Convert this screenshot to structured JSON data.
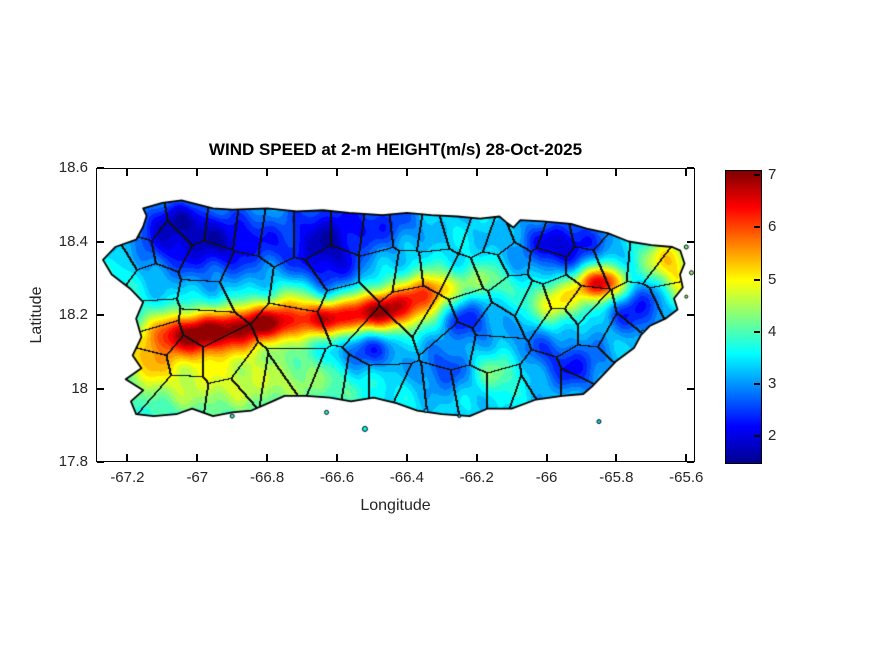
{
  "figure": {
    "background": "#ffffff",
    "axis_color": "#000000",
    "tick_label_color": "#262626",
    "title_color": "#000000"
  },
  "chart_data": {
    "type": "heatmap",
    "title": "WIND SPEED at 2-m HEIGHT(m/s) 28-Oct-2025",
    "xlabel": "Longitude",
    "ylabel": "Latitude",
    "units": "m/s",
    "grid": false,
    "xlim": [
      -67.29,
      -65.575
    ],
    "ylim": [
      17.8,
      18.6
    ],
    "x_tick_values": [
      -67.2,
      -67.0,
      -66.8,
      -66.6,
      -66.4,
      -66.2,
      -66.0,
      -65.8,
      -65.6
    ],
    "x_tick_labels": [
      "-67.2",
      "-67",
      "-66.8",
      "-66.6",
      "-66.4",
      "-66.2",
      "-66",
      "-65.8",
      "-65.6"
    ],
    "y_tick_values": [
      18.6,
      18.4,
      18.2,
      18.0,
      17.8
    ],
    "y_tick_labels": [
      "18.6",
      "18.4",
      "18.2",
      "18",
      "17.8"
    ],
    "colorbar": {
      "min": 1.5,
      "max": 7.1,
      "tick_values": [
        2,
        3,
        4,
        5,
        6,
        7
      ],
      "tick_labels": [
        "2",
        "3",
        "4",
        "5",
        "6",
        "7"
      ],
      "colormap": "jet",
      "position": "right"
    },
    "jet_anchors": [
      {
        "t": 0.0,
        "rgb": [
          0,
          0,
          143
        ]
      },
      {
        "t": 0.125,
        "rgb": [
          0,
          0,
          255
        ]
      },
      {
        "t": 0.375,
        "rgb": [
          0,
          255,
          255
        ]
      },
      {
        "t": 0.625,
        "rgb": [
          255,
          255,
          0
        ]
      },
      {
        "t": 0.875,
        "rgb": [
          255,
          0,
          0
        ]
      },
      {
        "t": 1.0,
        "rgb": [
          128,
          0,
          0
        ]
      }
    ],
    "contour_step": 0.2,
    "base_value": 3.4,
    "noise_amp": 0.18,
    "value_range": [
      1.6,
      7.05
    ],
    "wind_features": [
      {
        "name": "nw-interior-low",
        "kind": "low",
        "lon": -66.97,
        "lat": 18.4,
        "sx": 0.16,
        "sy": 0.065,
        "amp": -1.6
      },
      {
        "name": "nw-corner-low",
        "kind": "low",
        "lon": -67.07,
        "lat": 18.465,
        "sx": 0.055,
        "sy": 0.035,
        "amp": -0.8
      },
      {
        "name": "arecibo-low",
        "kind": "low",
        "lon": -66.625,
        "lat": 18.38,
        "sx": 0.075,
        "sy": 0.1,
        "amp": -1.5
      },
      {
        "name": "manati-coast-low",
        "kind": "low",
        "lon": -66.46,
        "lat": 18.45,
        "sx": 0.07,
        "sy": 0.045,
        "amp": -0.9
      },
      {
        "name": "ne-coast-low",
        "kind": "low",
        "lon": -65.955,
        "lat": 18.39,
        "sx": 0.085,
        "sy": 0.05,
        "amp": -1.5
      },
      {
        "name": "villalba-low",
        "kind": "low",
        "lon": -66.52,
        "lat": 18.11,
        "sx": 0.065,
        "sy": 0.05,
        "amp": -1.3
      },
      {
        "name": "comerio-low",
        "kind": "low",
        "lon": -66.23,
        "lat": 18.19,
        "sx": 0.055,
        "sy": 0.045,
        "amp": -1.1
      },
      {
        "name": "coamo-low",
        "kind": "low",
        "lon": -66.29,
        "lat": 18.05,
        "sx": 0.06,
        "sy": 0.045,
        "amp": -0.9
      },
      {
        "name": "yabucoa-low",
        "kind": "low",
        "lon": -65.925,
        "lat": 18.06,
        "sx": 0.07,
        "sy": 0.05,
        "amp": -1.1
      },
      {
        "name": "naguabo-low",
        "kind": "low",
        "lon": -65.745,
        "lat": 18.22,
        "sx": 0.065,
        "sy": 0.05,
        "amp": -1.2
      },
      {
        "name": "san-lorenzo-low",
        "kind": "low",
        "lon": -66.05,
        "lat": 18.12,
        "sx": 0.05,
        "sy": 0.04,
        "amp": -0.6
      },
      {
        "name": "maricao-ridge-high",
        "kind": "high",
        "lon": -67.0,
        "lat": 18.15,
        "sx": 0.105,
        "sy": 0.042,
        "amp": 3.5
      },
      {
        "name": "adjuntas-ridge-high",
        "kind": "high",
        "lon": -66.81,
        "lat": 18.18,
        "sx": 0.075,
        "sy": 0.038,
        "amp": 2.9
      },
      {
        "name": "jayuya-ridge-high",
        "kind": "high",
        "lon": -66.615,
        "lat": 18.19,
        "sx": 0.08,
        "sy": 0.038,
        "amp": 3.1
      },
      {
        "name": "orocovis-ridge-high",
        "kind": "high",
        "lon": -66.455,
        "lat": 18.215,
        "sx": 0.075,
        "sy": 0.042,
        "amp": 3.3
      },
      {
        "name": "barranquitas-high",
        "kind": "high",
        "lon": -66.33,
        "lat": 18.265,
        "sx": 0.055,
        "sy": 0.038,
        "amp": 2.3
      },
      {
        "name": "naranjito-high",
        "kind": "high",
        "lon": -66.18,
        "lat": 18.29,
        "sx": 0.05,
        "sy": 0.034,
        "amp": 1.1
      },
      {
        "name": "gurabo-tail-high",
        "kind": "high",
        "lon": -65.975,
        "lat": 18.235,
        "sx": 0.055,
        "sy": 0.038,
        "amp": 1.7
      },
      {
        "name": "el-yunque-high",
        "kind": "high",
        "lon": -65.845,
        "lat": 18.285,
        "sx": 0.05,
        "sy": 0.034,
        "amp": 3.5
      },
      {
        "name": "fajardo-tip-high",
        "kind": "high",
        "lon": -65.66,
        "lat": 18.355,
        "sx": 0.05,
        "sy": 0.045,
        "amp": 1.7
      },
      {
        "name": "sw-coastal-high",
        "kind": "high",
        "lon": -66.95,
        "lat": 18.02,
        "sx": 0.2,
        "sy": 0.075,
        "amp": 1.35
      },
      {
        "name": "cabo-rojo-high",
        "kind": "high",
        "lon": -67.14,
        "lat": 18.075,
        "sx": 0.055,
        "sy": 0.045,
        "amp": 1.1
      },
      {
        "name": "ponce-coast-high",
        "kind": "high",
        "lon": -66.63,
        "lat": 18.02,
        "sx": 0.13,
        "sy": 0.05,
        "amp": 0.5
      },
      {
        "name": "cayey-south-high",
        "kind": "high",
        "lon": -66.14,
        "lat": 18.045,
        "sx": 0.055,
        "sy": 0.04,
        "amp": 0.9
      },
      {
        "name": "utuado-high",
        "kind": "high",
        "lon": -66.72,
        "lat": 18.25,
        "sx": 0.05,
        "sy": 0.04,
        "amp": 0.9
      },
      {
        "name": "ceiba-coast-high",
        "kind": "high",
        "lon": -65.615,
        "lat": 18.28,
        "sx": 0.035,
        "sy": 0.05,
        "amp": 1.2
      },
      {
        "name": "rincon-high",
        "kind": "high",
        "lon": -67.22,
        "lat": 18.32,
        "sx": 0.05,
        "sy": 0.06,
        "amp": 0.5
      }
    ],
    "coastline": [
      [
        -67.155,
        18.49
      ],
      [
        -67.1,
        18.505
      ],
      [
        -67.045,
        18.512
      ],
      [
        -66.955,
        18.49
      ],
      [
        -66.9,
        18.487
      ],
      [
        -66.8,
        18.49
      ],
      [
        -66.715,
        18.482
      ],
      [
        -66.64,
        18.485
      ],
      [
        -66.565,
        18.478
      ],
      [
        -66.47,
        18.472
      ],
      [
        -66.4,
        18.478
      ],
      [
        -66.33,
        18.472
      ],
      [
        -66.255,
        18.468
      ],
      [
        -66.19,
        18.462
      ],
      [
        -66.135,
        18.468
      ],
      [
        -66.115,
        18.452
      ],
      [
        -66.095,
        18.438
      ],
      [
        -66.075,
        18.458
      ],
      [
        -66.01,
        18.455
      ],
      [
        -65.93,
        18.448
      ],
      [
        -65.885,
        18.435
      ],
      [
        -65.825,
        18.423
      ],
      [
        -65.765,
        18.4
      ],
      [
        -65.7,
        18.39
      ],
      [
        -65.64,
        18.385
      ],
      [
        -65.617,
        18.375
      ],
      [
        -65.605,
        18.34
      ],
      [
        -65.618,
        18.31
      ],
      [
        -65.61,
        18.275
      ],
      [
        -65.635,
        18.245
      ],
      [
        -65.625,
        18.215
      ],
      [
        -65.66,
        18.19
      ],
      [
        -65.705,
        18.17
      ],
      [
        -65.73,
        18.145
      ],
      [
        -65.75,
        18.11
      ],
      [
        -65.8,
        18.075
      ],
      [
        -65.825,
        18.05
      ],
      [
        -65.87,
        18.005
      ],
      [
        -65.895,
        17.985
      ],
      [
        -65.955,
        17.98
      ],
      [
        -66.03,
        17.97
      ],
      [
        -66.1,
        17.945
      ],
      [
        -66.17,
        17.945
      ],
      [
        -66.22,
        17.925
      ],
      [
        -66.3,
        17.93
      ],
      [
        -66.37,
        17.94
      ],
      [
        -66.43,
        17.96
      ],
      [
        -66.495,
        17.975
      ],
      [
        -66.56,
        17.965
      ],
      [
        -66.62,
        17.975
      ],
      [
        -66.69,
        17.98
      ],
      [
        -66.75,
        17.98
      ],
      [
        -66.785,
        17.965
      ],
      [
        -66.845,
        17.94
      ],
      [
        -66.9,
        17.935
      ],
      [
        -66.955,
        17.925
      ],
      [
        -67.015,
        17.945
      ],
      [
        -67.06,
        17.93
      ],
      [
        -67.125,
        17.925
      ],
      [
        -67.175,
        17.93
      ],
      [
        -67.19,
        17.965
      ],
      [
        -67.155,
        17.995
      ],
      [
        -67.205,
        18.025
      ],
      [
        -67.16,
        18.055
      ],
      [
        -67.185,
        18.09
      ],
      [
        -67.16,
        18.14
      ],
      [
        -67.175,
        18.19
      ],
      [
        -67.155,
        18.235
      ],
      [
        -67.19,
        18.27
      ],
      [
        -67.245,
        18.31
      ],
      [
        -67.27,
        18.35
      ],
      [
        -67.235,
        18.385
      ],
      [
        -67.175,
        18.405
      ],
      [
        -67.155,
        18.44
      ],
      [
        -67.145,
        18.47
      ]
    ],
    "islets": [
      [
        -66.9,
        17.925,
        2
      ],
      [
        -66.63,
        17.935,
        2
      ],
      [
        -66.52,
        17.89,
        2.5
      ],
      [
        -66.345,
        17.94,
        2
      ],
      [
        -66.25,
        17.925,
        1.5
      ],
      [
        -65.85,
        17.91,
        2
      ],
      [
        -65.6,
        18.385,
        2
      ],
      [
        -65.585,
        18.315,
        2
      ],
      [
        -65.6,
        18.25,
        1.5
      ],
      [
        -65.725,
        18.155,
        1.5
      ]
    ],
    "municipality_seeds": [
      [
        -67.15,
        18.44
      ],
      [
        -67.02,
        18.46
      ],
      [
        -66.93,
        18.45
      ],
      [
        -66.85,
        18.44
      ],
      [
        -66.78,
        18.43
      ],
      [
        -66.67,
        18.43
      ],
      [
        -66.57,
        18.43
      ],
      [
        -66.49,
        18.42
      ],
      [
        -66.4,
        18.43
      ],
      [
        -66.33,
        18.42
      ],
      [
        -66.26,
        18.44
      ],
      [
        -66.2,
        18.42
      ],
      [
        -66.14,
        18.4
      ],
      [
        -66.06,
        18.43
      ],
      [
        -65.975,
        18.4
      ],
      [
        -65.88,
        18.42
      ],
      [
        -65.82,
        18.37
      ],
      [
        -65.71,
        18.36
      ],
      [
        -65.655,
        18.32
      ],
      [
        -65.64,
        18.25
      ],
      [
        -65.73,
        18.21
      ],
      [
        -65.79,
        18.14
      ],
      [
        -65.88,
        18.05
      ],
      [
        -65.905,
        18.0
      ],
      [
        -66.015,
        18.0
      ],
      [
        -66.065,
        17.97
      ],
      [
        -66.125,
        17.99
      ],
      [
        -66.22,
        17.99
      ],
      [
        -66.305,
        17.975
      ],
      [
        -66.39,
        17.965
      ],
      [
        -66.47,
        18.0
      ],
      [
        -66.55,
        18.0
      ],
      [
        -66.615,
        18.01
      ],
      [
        -66.72,
        18.05
      ],
      [
        -66.78,
        18.01
      ],
      [
        -66.845,
        18.02
      ],
      [
        -66.905,
        17.97
      ],
      [
        -67.045,
        17.99
      ],
      [
        -67.13,
        18.06
      ],
      [
        -67.04,
        18.08
      ],
      [
        -67.11,
        18.135
      ],
      [
        -67.13,
        18.2
      ],
      [
        -67.135,
        18.28
      ],
      [
        -67.23,
        18.345
      ],
      [
        -67.17,
        18.38
      ],
      [
        -67.09,
        18.395
      ],
      [
        -66.97,
        18.335
      ],
      [
        -66.88,
        18.295
      ],
      [
        -66.975,
        18.25
      ],
      [
        -66.98,
        18.175
      ],
      [
        -66.93,
        18.08
      ],
      [
        -66.72,
        18.165
      ],
      [
        -66.7,
        18.27
      ],
      [
        -66.58,
        18.22
      ],
      [
        -66.465,
        18.33
      ],
      [
        -66.4,
        18.32
      ],
      [
        -66.38,
        18.225
      ],
      [
        -66.475,
        18.13
      ],
      [
        -66.31,
        18.185
      ],
      [
        -66.26,
        18.13
      ],
      [
        -66.32,
        18.33
      ],
      [
        -66.245,
        18.295
      ],
      [
        -66.22,
        18.22
      ],
      [
        -66.155,
        18.33
      ],
      [
        -66.105,
        18.355
      ],
      [
        -66.1,
        18.26
      ],
      [
        -66.155,
        18.175
      ],
      [
        -66.16,
        18.11
      ],
      [
        -66.035,
        18.23
      ],
      [
        -65.96,
        18.255
      ],
      [
        -65.91,
        18.22
      ],
      [
        -65.96,
        18.18
      ],
      [
        -65.865,
        18.18
      ],
      [
        -65.995,
        18.34
      ],
      [
        -65.895,
        18.34
      ],
      [
        -66.61,
        18.33
      ]
    ]
  }
}
